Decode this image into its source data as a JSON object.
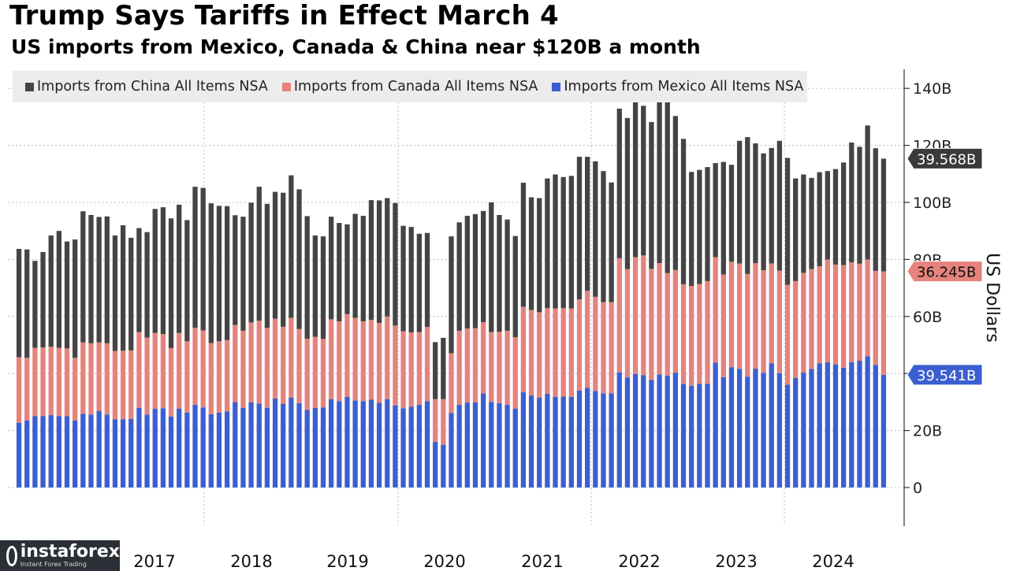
{
  "chart_data": {
    "type": "bar",
    "stacked": true,
    "title": "Trump Says Tariffs in Effect March 4",
    "subtitle": "US imports from Mexico, Canada & China near $120B a month",
    "ylabel": "US Dollars",
    "ylim": [
      -12,
      145
    ],
    "yticks": [
      {
        "value": 0,
        "label": "0"
      },
      {
        "value": 20,
        "label": "20B"
      },
      {
        "value": 40,
        "label": "40B"
      },
      {
        "value": 60,
        "label": "60B"
      },
      {
        "value": 80,
        "label": "80B"
      },
      {
        "value": 100,
        "label": "100B"
      },
      {
        "value": 120,
        "label": "120B"
      },
      {
        "value": 140,
        "label": "140B"
      }
    ],
    "year_labels": [
      "2017",
      "2018",
      "2019",
      "2020",
      "2021",
      "2022",
      "2023",
      "2024"
    ],
    "series": [
      {
        "name": "Imports from Mexico All Items NSA",
        "color": "#3b5fd0",
        "last_value_label": "39.541B",
        "last_value": 39.541,
        "values": [
          22.7,
          23.5,
          25.0,
          25.1,
          25.4,
          25.0,
          25.0,
          23.5,
          25.9,
          25.6,
          26.9,
          25.6,
          23.9,
          24.0,
          24.1,
          28.0,
          25.6,
          27.6,
          27.8,
          24.9,
          27.7,
          26.3,
          29.0,
          28.1,
          25.7,
          26.3,
          26.7,
          30.0,
          28.0,
          29.9,
          29.5,
          28.0,
          31.2,
          29.4,
          31.5,
          29.6,
          27.2,
          27.9,
          28.1,
          31.0,
          30.3,
          31.8,
          30.5,
          30.3,
          30.8,
          29.7,
          31.0,
          28.8,
          27.8,
          28.4,
          29.0,
          30.3,
          16.0,
          15.0,
          26.1,
          29.0,
          29.8,
          29.9,
          33.0,
          30.0,
          29.6,
          29.0,
          27.7,
          33.4,
          32.3,
          31.5,
          32.9,
          31.8,
          31.9,
          31.8,
          34.0,
          35.0,
          33.9,
          33.0,
          33.0,
          40.4,
          38.6,
          39.8,
          39.4,
          37.7,
          39.7,
          39.2,
          40.3,
          36.3,
          35.7,
          36.4,
          36.4,
          43.8,
          38.7,
          42.2,
          41.6,
          38.9,
          41.7,
          40.2,
          43.6,
          40.1,
          36.1,
          38.4,
          40.3,
          41.6,
          43.6,
          44.0,
          43.2,
          42.0,
          44.0,
          44.5,
          46.0,
          43.0,
          39.541
        ]
      },
      {
        "name": "Imports from Canada All Items NSA",
        "color": "#e5837c",
        "last_value_label": "36.245B",
        "last_value": 36.245,
        "values": [
          23.0,
          22.0,
          24.0,
          24.0,
          24.0,
          24.0,
          23.8,
          22.0,
          25.0,
          25.0,
          24.0,
          25.0,
          24.0,
          24.0,
          24.0,
          26.5,
          27.0,
          26.6,
          26.0,
          24.0,
          26.5,
          25.0,
          27.0,
          27.0,
          25.0,
          25.0,
          25.0,
          27.0,
          27.0,
          28.0,
          29.0,
          28.0,
          28.0,
          27.0,
          28.0,
          26.0,
          25.0,
          25.0,
          24.0,
          28.0,
          28.0,
          29.0,
          29.0,
          28.0,
          28.0,
          28.0,
          29.0,
          28.0,
          27.0,
          26.0,
          25.5,
          26.0,
          15.0,
          16.0,
          21.0,
          26.0,
          26.0,
          26.0,
          25.0,
          24.5,
          25.0,
          26.0,
          25.0,
          30.0,
          30.0,
          30.0,
          30.0,
          31.0,
          31.0,
          31.0,
          32.0,
          34.0,
          33.0,
          32.0,
          32.0,
          40.0,
          38.0,
          41.0,
          42.0,
          39.0,
          39.0,
          36.0,
          36.0,
          35.0,
          35.0,
          35.0,
          36.0,
          37.0,
          36.0,
          37.0,
          37.0,
          36.0,
          37.0,
          36.0,
          35.0,
          36.0,
          35.0,
          34.0,
          35.0,
          35.0,
          34.0,
          36.0,
          35.0,
          36.0,
          35.0,
          34.0,
          34.0,
          33.0,
          36.245
        ]
      },
      {
        "name": "Imports from China All Items NSA",
        "color": "#444444",
        "last_value_label": "39.568B",
        "last_value": 39.568,
        "values": [
          38.0,
          38.0,
          30.5,
          33.5,
          39.0,
          41.0,
          37.5,
          41.5,
          46.0,
          45.0,
          44.0,
          44.5,
          40.5,
          44.0,
          39.5,
          36.5,
          37.0,
          43.5,
          44.5,
          45.5,
          45.0,
          42.5,
          49.5,
          50.0,
          49.0,
          47.5,
          47.0,
          38.5,
          40.0,
          42.0,
          47.0,
          43.5,
          44.5,
          47.0,
          50.0,
          49.0,
          43.0,
          35.5,
          36.0,
          36.0,
          34.5,
          31.5,
          36.5,
          37.0,
          42.0,
          43.0,
          41.5,
          43.0,
          37.0,
          37.0,
          34.5,
          33.0,
          20.0,
          21.5,
          41.0,
          38.0,
          39.5,
          40.0,
          39.0,
          45.5,
          41.0,
          39.0,
          35.5,
          43.5,
          39.5,
          40.0,
          45.5,
          47.0,
          46.0,
          46.5,
          50.0,
          47.0,
          47.5,
          46.0,
          42.0,
          52.5,
          53.0,
          58.0,
          52.5,
          51.5,
          59.0,
          60.0,
          54.0,
          51.0,
          40.0,
          40.0,
          40.0,
          33.0,
          39.5,
          34.0,
          43.0,
          48.0,
          42.0,
          41.0,
          40.5,
          45.5,
          44.5,
          36.0,
          34.5,
          32.0,
          33.0,
          31.0,
          33.5,
          36.0,
          42.0,
          41.0,
          47.0,
          43.0,
          39.568
        ]
      }
    ],
    "series_values_note": ""
  },
  "watermark": {
    "name": "instaforex",
    "tagline": "Instant Forex Trading"
  }
}
